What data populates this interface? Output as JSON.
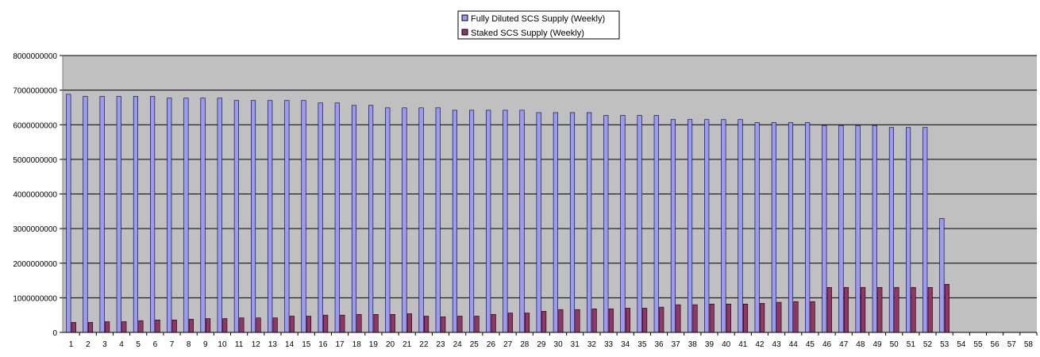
{
  "chart_data": {
    "type": "bar",
    "title": "",
    "xlabel": "",
    "ylabel": "",
    "ylim": [
      0,
      8000000000
    ],
    "ytick_values": [
      0,
      1000000000,
      2000000000,
      3000000000,
      4000000000,
      5000000000,
      6000000000,
      7000000000,
      8000000000
    ],
    "ytick_labels": [
      "0",
      "1000000000",
      "2000000000",
      "3000000000",
      "4000000000",
      "5000000000",
      "6000000000",
      "7000000000",
      "8000000000"
    ],
    "grid": true,
    "legend_position": "top-center",
    "categories": [
      "1",
      "2",
      "3",
      "4",
      "5",
      "6",
      "7",
      "8",
      "9",
      "10",
      "11",
      "12",
      "13",
      "14",
      "15",
      "16",
      "17",
      "18",
      "19",
      "20",
      "21",
      "22",
      "23",
      "24",
      "25",
      "26",
      "27",
      "28",
      "29",
      "30",
      "31",
      "32",
      "33",
      "34",
      "35",
      "36",
      "37",
      "38",
      "39",
      "40",
      "41",
      "42",
      "43",
      "44",
      "45",
      "46",
      "47",
      "48",
      "49",
      "50",
      "51",
      "52",
      "53",
      "54",
      "55",
      "56",
      "57",
      "58"
    ],
    "series": [
      {
        "name": "Fully Diluted SCS Supply (Weekly)",
        "color": "#9999ff",
        "values": [
          6880000000,
          6820000000,
          6820000000,
          6820000000,
          6820000000,
          6820000000,
          6770000000,
          6770000000,
          6770000000,
          6770000000,
          6700000000,
          6700000000,
          6700000000,
          6700000000,
          6700000000,
          6630000000,
          6630000000,
          6560000000,
          6560000000,
          6490000000,
          6490000000,
          6490000000,
          6490000000,
          6420000000,
          6420000000,
          6420000000,
          6420000000,
          6420000000,
          6350000000,
          6350000000,
          6350000000,
          6350000000,
          6270000000,
          6270000000,
          6270000000,
          6270000000,
          6150000000,
          6150000000,
          6150000000,
          6150000000,
          6150000000,
          6060000000,
          6060000000,
          6060000000,
          6060000000,
          5980000000,
          5980000000,
          5980000000,
          5980000000,
          5920000000,
          5920000000,
          5920000000,
          3290000000,
          0,
          0,
          0,
          0,
          0
        ]
      },
      {
        "name": "Staked SCS Supply (Weekly)",
        "color": "#993366",
        "values": [
          290000000,
          290000000,
          310000000,
          310000000,
          340000000,
          360000000,
          360000000,
          380000000,
          400000000,
          400000000,
          420000000,
          420000000,
          420000000,
          470000000,
          470000000,
          500000000,
          500000000,
          520000000,
          520000000,
          520000000,
          540000000,
          470000000,
          450000000,
          470000000,
          470000000,
          520000000,
          560000000,
          560000000,
          610000000,
          660000000,
          660000000,
          680000000,
          680000000,
          700000000,
          700000000,
          730000000,
          800000000,
          800000000,
          820000000,
          820000000,
          820000000,
          840000000,
          870000000,
          890000000,
          890000000,
          1300000000,
          1300000000,
          1300000000,
          1300000000,
          1300000000,
          1300000000,
          1300000000,
          1390000000,
          0,
          0,
          0,
          0,
          0
        ]
      }
    ]
  }
}
